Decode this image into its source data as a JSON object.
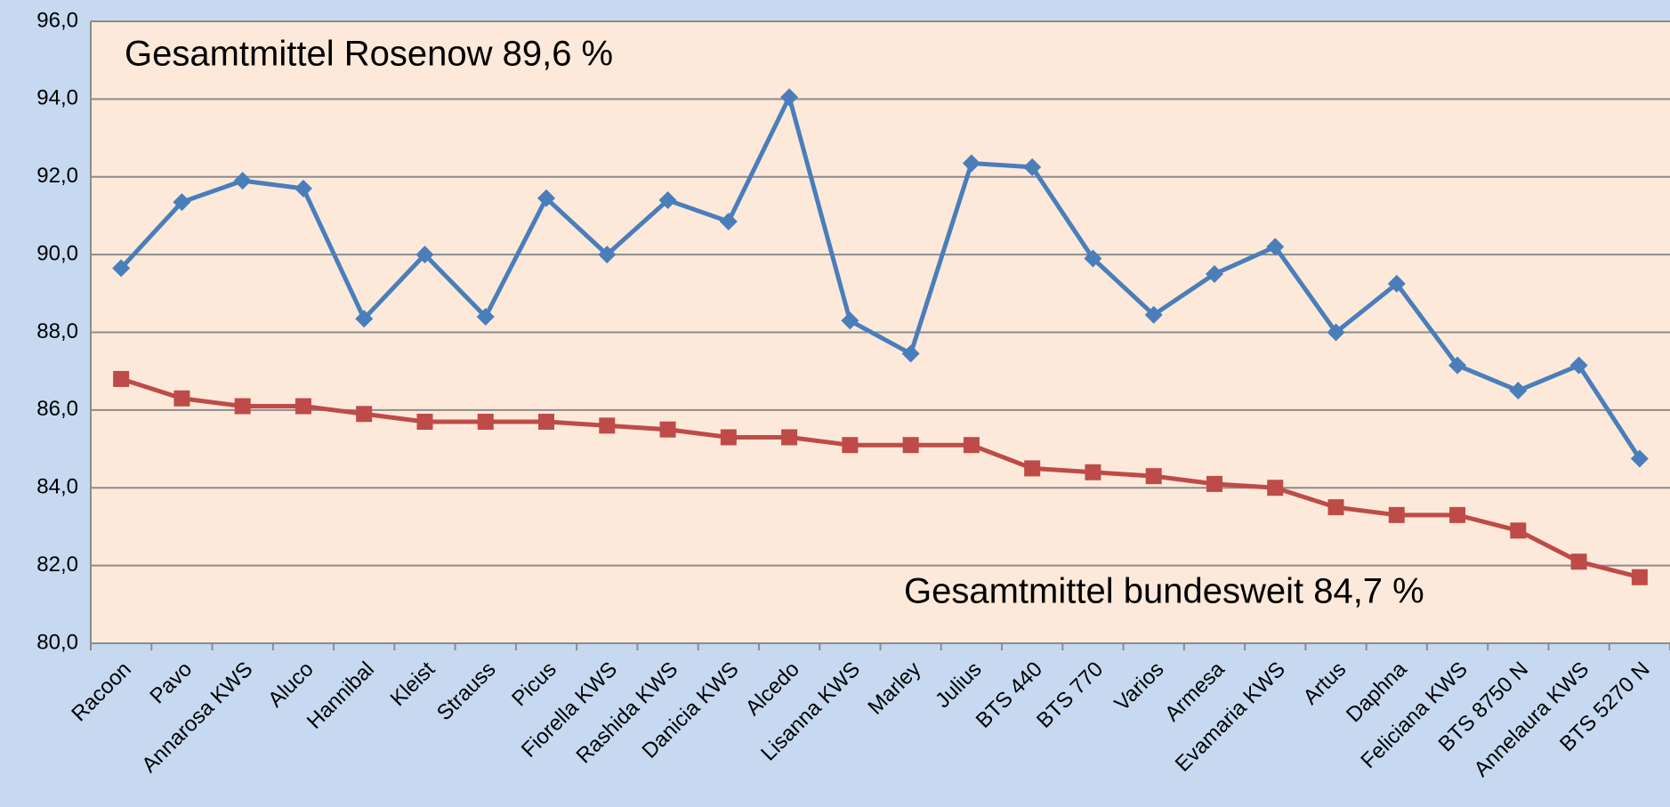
{
  "chart_data": {
    "type": "line",
    "annotations": [
      "Gesamtmittel Rosenow 89,6 %",
      "Gesamtmittel bundesweit 84,7 %"
    ],
    "categories": [
      "Racoon",
      "Pavo",
      "Annarosa KWS",
      "Aluco",
      "Hannibal",
      "Kleist",
      "Strauss",
      "Picus",
      "Fiorella KWS",
      "Rashida KWS",
      "Danicia KWS",
      "Alcedo",
      "Lisanna KWS",
      "Marley",
      "Julius",
      "BTS 440",
      "BTS 770",
      "Varios",
      "Armesa",
      "Evamaria KWS",
      "Artus",
      "Daphna",
      "Feliciana KWS",
      "BTS 8750 N",
      "Annelaura KWS",
      "BTS 5270 N"
    ],
    "series": [
      {
        "color": "#4a7ebb",
        "marker": "diamond",
        "values": [
          89.65,
          91.35,
          91.9,
          91.7,
          88.35,
          90.0,
          88.4,
          91.45,
          90.0,
          91.4,
          90.85,
          94.05,
          88.3,
          87.45,
          92.35,
          92.25,
          89.9,
          88.45,
          89.5,
          90.2,
          88.0,
          89.25,
          87.15,
          86.5,
          87.15,
          84.75
        ]
      },
      {
        "color": "#be4b48",
        "marker": "square",
        "values": [
          86.8,
          86.3,
          86.1,
          86.1,
          85.9,
          85.7,
          85.7,
          85.7,
          85.6,
          85.5,
          85.3,
          85.3,
          85.1,
          85.1,
          85.1,
          84.5,
          84.4,
          84.3,
          84.1,
          84.0,
          83.5,
          83.3,
          83.3,
          82.9,
          82.1,
          81.7
        ]
      }
    ],
    "ylim": [
      80,
      96
    ],
    "yticks": [
      {
        "value": 80,
        "label": "80,0"
      },
      {
        "value": 82,
        "label": "82,0"
      },
      {
        "value": 84,
        "label": "84,0"
      },
      {
        "value": 86,
        "label": "86,0"
      },
      {
        "value": 88,
        "label": "88,0"
      },
      {
        "value": 90,
        "label": "90,0"
      },
      {
        "value": 92,
        "label": "92,0"
      },
      {
        "value": 94,
        "label": "94,0"
      },
      {
        "value": 96,
        "label": "96,0"
      }
    ],
    "grid": true
  }
}
